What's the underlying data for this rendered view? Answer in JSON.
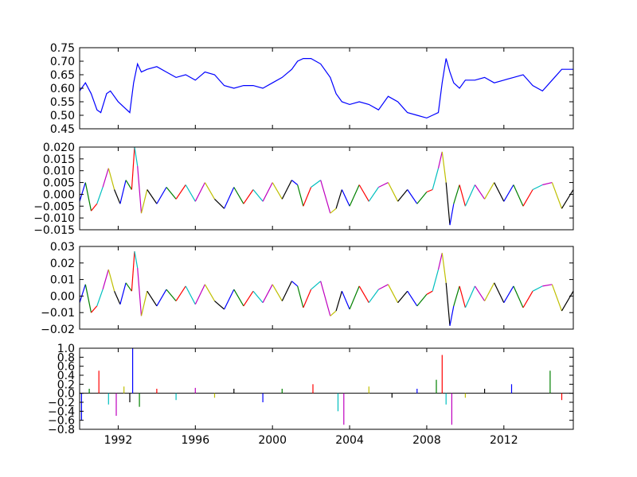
{
  "chart_data": [
    {
      "type": "line",
      "title": "",
      "xlabel": "",
      "ylabel": "",
      "xlim": [
        1990,
        2015.6
      ],
      "ylim": [
        0.45,
        0.75
      ],
      "yticks": [
        "0.45",
        "0.50",
        "0.55",
        "0.60",
        "0.65",
        "0.70",
        "0.75"
      ],
      "xticks": [],
      "grid": false,
      "series_colors": [
        "#0000ff"
      ],
      "x": [
        1990.0,
        1990.3,
        1990.6,
        1990.9,
        1991.1,
        1991.4,
        1991.6,
        1992.0,
        1992.3,
        1992.6,
        1992.8,
        1993.0,
        1993.2,
        1993.5,
        1994.0,
        1994.5,
        1995.0,
        1995.5,
        1996.0,
        1996.5,
        1997.0,
        1997.5,
        1998.0,
        1998.5,
        1999.0,
        1999.5,
        2000.0,
        2000.5,
        2001.0,
        2001.3,
        2001.6,
        2002.0,
        2002.5,
        2003.0,
        2003.3,
        2003.6,
        2004.0,
        2004.5,
        2005.0,
        2005.5,
        2006.0,
        2006.5,
        2007.0,
        2007.5,
        2008.0,
        2008.3,
        2008.6,
        2008.8,
        2009.0,
        2009.2,
        2009.4,
        2009.7,
        2010.0,
        2010.5,
        2011.0,
        2011.5,
        2012.0,
        2012.5,
        2013.0,
        2013.5,
        2014.0,
        2014.5,
        2015.0,
        2015.6
      ],
      "y": [
        0.59,
        0.62,
        0.58,
        0.52,
        0.51,
        0.58,
        0.59,
        0.55,
        0.53,
        0.51,
        0.62,
        0.69,
        0.66,
        0.67,
        0.68,
        0.66,
        0.64,
        0.65,
        0.63,
        0.66,
        0.65,
        0.61,
        0.6,
        0.61,
        0.61,
        0.6,
        0.62,
        0.64,
        0.67,
        0.7,
        0.71,
        0.71,
        0.69,
        0.64,
        0.58,
        0.55,
        0.54,
        0.55,
        0.54,
        0.52,
        0.57,
        0.55,
        0.51,
        0.5,
        0.49,
        0.5,
        0.51,
        0.62,
        0.71,
        0.66,
        0.62,
        0.6,
        0.63,
        0.63,
        0.64,
        0.62,
        0.63,
        0.64,
        0.65,
        0.61,
        0.59,
        0.63,
        0.67,
        0.67
      ]
    },
    {
      "type": "line",
      "title": "",
      "xlabel": "",
      "ylabel": "",
      "xlim": [
        1990,
        2015.6
      ],
      "ylim": [
        -0.015,
        0.02
      ],
      "yticks": [
        "−0.015",
        "−0.010",
        "−0.005",
        "0.000",
        "0.005",
        "0.010",
        "0.015",
        "0.020"
      ],
      "xticks": [],
      "grid": false,
      "color_cycle": [
        "#0000ff",
        "#008000",
        "#ff0000",
        "#00bfbf",
        "#bf00bf",
        "#bfbf00",
        "#000000"
      ],
      "x": [
        1990.0,
        1990.3,
        1990.6,
        1990.9,
        1991.2,
        1991.5,
        1991.8,
        1992.1,
        1992.4,
        1992.7,
        1992.85,
        1993.0,
        1993.2,
        1993.5,
        1994.0,
        1994.5,
        1995.0,
        1995.5,
        1996.0,
        1996.5,
        1997.0,
        1997.5,
        1998.0,
        1998.5,
        1999.0,
        1999.5,
        2000.0,
        2000.5,
        2001.0,
        2001.3,
        2001.6,
        2002.0,
        2002.5,
        2003.0,
        2003.3,
        2003.6,
        2004.0,
        2004.5,
        2005.0,
        2005.5,
        2006.0,
        2006.5,
        2007.0,
        2007.5,
        2008.0,
        2008.3,
        2008.6,
        2008.8,
        2009.0,
        2009.2,
        2009.4,
        2009.7,
        2010.0,
        2010.5,
        2011.0,
        2011.5,
        2012.0,
        2012.5,
        2013.0,
        2013.5,
        2014.0,
        2014.5,
        2015.0,
        2015.6
      ],
      "y": [
        -0.003,
        0.005,
        -0.007,
        -0.004,
        0.003,
        0.011,
        0.002,
        -0.004,
        0.006,
        0.002,
        0.02,
        0.012,
        -0.008,
        0.002,
        -0.004,
        0.003,
        -0.002,
        0.004,
        -0.003,
        0.005,
        -0.002,
        -0.006,
        0.003,
        -0.004,
        0.002,
        -0.003,
        0.005,
        -0.002,
        0.006,
        0.004,
        -0.005,
        0.003,
        0.006,
        -0.008,
        -0.006,
        0.002,
        -0.005,
        0.004,
        -0.003,
        0.003,
        0.005,
        -0.003,
        0.002,
        -0.004,
        0.001,
        0.002,
        0.011,
        0.018,
        0.005,
        -0.013,
        -0.004,
        0.004,
        -0.005,
        0.004,
        -0.002,
        0.005,
        -0.003,
        0.004,
        -0.005,
        0.002,
        0.004,
        0.005,
        -0.006,
        0.002
      ]
    },
    {
      "type": "line",
      "title": "",
      "xlabel": "",
      "ylabel": "",
      "xlim": [
        1990,
        2015.6
      ],
      "ylim": [
        -0.02,
        0.03
      ],
      "yticks": [
        "−0.02",
        "−0.01",
        "0.00",
        "0.01",
        "0.02",
        "0.03"
      ],
      "xticks": [],
      "grid": false,
      "color_cycle": [
        "#0000ff",
        "#008000",
        "#ff0000",
        "#00bfbf",
        "#bf00bf",
        "#bfbf00",
        "#000000"
      ],
      "x": [
        1990.0,
        1990.3,
        1990.6,
        1990.9,
        1991.2,
        1991.5,
        1991.8,
        1992.1,
        1992.4,
        1992.7,
        1992.85,
        1993.0,
        1993.2,
        1993.5,
        1994.0,
        1994.5,
        1995.0,
        1995.5,
        1996.0,
        1996.5,
        1997.0,
        1997.5,
        1998.0,
        1998.5,
        1999.0,
        1999.5,
        2000.0,
        2000.5,
        2001.0,
        2001.3,
        2001.6,
        2002.0,
        2002.5,
        2003.0,
        2003.3,
        2003.6,
        2004.0,
        2004.5,
        2005.0,
        2005.5,
        2006.0,
        2006.5,
        2007.0,
        2007.5,
        2008.0,
        2008.3,
        2008.6,
        2008.8,
        2009.0,
        2009.2,
        2009.4,
        2009.7,
        2010.0,
        2010.5,
        2011.0,
        2011.5,
        2012.0,
        2012.5,
        2013.0,
        2013.5,
        2014.0,
        2014.5,
        2015.0,
        2015.6
      ],
      "y": [
        -0.004,
        0.007,
        -0.01,
        -0.006,
        0.004,
        0.016,
        0.003,
        -0.005,
        0.008,
        0.003,
        0.027,
        0.017,
        -0.012,
        0.003,
        -0.006,
        0.004,
        -0.003,
        0.006,
        -0.005,
        0.007,
        -0.003,
        -0.008,
        0.004,
        -0.006,
        0.003,
        -0.004,
        0.007,
        -0.003,
        0.009,
        0.006,
        -0.007,
        0.004,
        0.009,
        -0.012,
        -0.009,
        0.003,
        -0.008,
        0.006,
        -0.004,
        0.004,
        0.007,
        -0.004,
        0.003,
        -0.006,
        0.001,
        0.003,
        0.016,
        0.026,
        0.008,
        -0.018,
        -0.006,
        0.006,
        -0.007,
        0.006,
        -0.003,
        0.008,
        -0.004,
        0.006,
        -0.007,
        0.003,
        0.006,
        0.007,
        -0.009,
        0.003
      ]
    },
    {
      "type": "bar",
      "title": "",
      "xlabel": "",
      "ylabel": "",
      "xlim": [
        1990,
        2015.6
      ],
      "ylim": [
        -0.8,
        1.0
      ],
      "yticks": [
        "−0.8",
        "−0.6",
        "−0.4",
        "−0.2",
        "0.0",
        "0.2",
        "0.4",
        "0.6",
        "0.8",
        "1.0"
      ],
      "xticks": [
        "1992",
        "1996",
        "2000",
        "2004",
        "2008",
        "2012"
      ],
      "xtick_values": [
        1992,
        1996,
        2000,
        2004,
        2008,
        2012
      ],
      "grid": false,
      "color_cycle": [
        "#0000ff",
        "#008000",
        "#ff0000",
        "#00bfbf",
        "#bf00bf",
        "#bfbf00",
        "#000000"
      ],
      "x": [
        1990.1,
        1990.5,
        1991.0,
        1991.5,
        1991.9,
        1992.3,
        1992.6,
        1992.75,
        1993.1,
        1994.0,
        1995.0,
        1996.0,
        1997.0,
        1998.0,
        1999.5,
        2000.5,
        2002.1,
        2003.4,
        2003.7,
        2005.0,
        2006.2,
        2007.5,
        2008.5,
        2008.8,
        2009.0,
        2009.3,
        2010.0,
        2011.0,
        2012.4,
        2014.4,
        2015.0
      ],
      "y": [
        -0.6,
        0.1,
        0.5,
        -0.25,
        -0.5,
        0.15,
        -0.2,
        1.0,
        -0.3,
        0.1,
        -0.15,
        0.12,
        -0.1,
        0.1,
        -0.2,
        0.1,
        0.2,
        -0.4,
        -0.7,
        0.15,
        -0.1,
        0.1,
        0.3,
        0.85,
        -0.25,
        -0.7,
        -0.1,
        0.1,
        0.2,
        0.5,
        -0.15
      ]
    }
  ]
}
